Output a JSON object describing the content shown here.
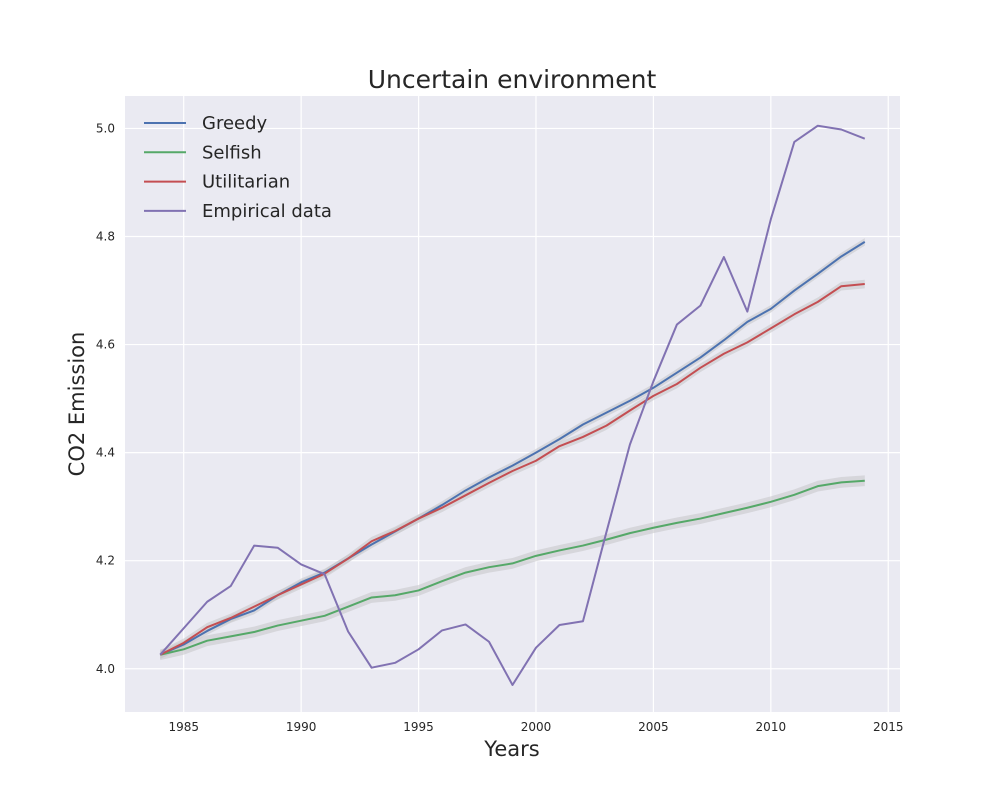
{
  "colors": {
    "background": "#eaeaf2",
    "grid": "#ffffff",
    "band": "#c8c8cc",
    "greedy": "#4c72b0",
    "selfish": "#55a868",
    "utilitarian": "#c44e52",
    "empirical": "#8172b2"
  },
  "chart_data": {
    "type": "line",
    "title": "Uncertain environment",
    "xlabel": "Years",
    "ylabel": "CO2 Emission",
    "xlim": [
      1982.5,
      2015.5
    ],
    "ylim": [
      3.92,
      5.06
    ],
    "xticks": [
      "1985",
      "1990",
      "1995",
      "2000",
      "2005",
      "2010",
      "2015"
    ],
    "yticks": [
      "4.0",
      "4.2",
      "4.4",
      "4.6",
      "4.8",
      "5.0"
    ],
    "grid": true,
    "legend_position": "top-left",
    "x": [
      1984,
      1985,
      1986,
      1987,
      1988,
      1989,
      1990,
      1991,
      1992,
      1993,
      1994,
      1995,
      1996,
      1997,
      1998,
      1999,
      2000,
      2001,
      2002,
      2003,
      2004,
      2005,
      2006,
      2007,
      2008,
      2009,
      2010,
      2011,
      2012,
      2013,
      2014
    ],
    "series": [
      {
        "name": "Greedy",
        "color_key": "greedy",
        "band": 0.007,
        "values": [
          4.026,
          4.045,
          4.07,
          4.092,
          4.108,
          4.136,
          4.16,
          4.178,
          4.204,
          4.23,
          4.254,
          4.278,
          4.303,
          4.33,
          4.354,
          4.376,
          4.4,
          4.425,
          4.452,
          4.474,
          4.496,
          4.52,
          4.548,
          4.576,
          4.608,
          4.642,
          4.666,
          4.7,
          4.731,
          4.763,
          4.79
        ]
      },
      {
        "name": "Selfish",
        "color_key": "selfish",
        "band": 0.01,
        "values": [
          4.026,
          4.036,
          4.052,
          4.06,
          4.068,
          4.08,
          4.089,
          4.098,
          4.115,
          4.132,
          4.136,
          4.145,
          4.162,
          4.178,
          4.188,
          4.195,
          4.209,
          4.219,
          4.228,
          4.239,
          4.251,
          4.261,
          4.27,
          4.278,
          4.288,
          4.298,
          4.309,
          4.322,
          4.338,
          4.345,
          4.348
        ]
      },
      {
        "name": "Utilitarian",
        "color_key": "utilitarian",
        "band": 0.008,
        "values": [
          4.026,
          4.048,
          4.077,
          4.094,
          4.115,
          4.136,
          4.156,
          4.176,
          4.204,
          4.236,
          4.255,
          4.278,
          4.298,
          4.321,
          4.344,
          4.366,
          4.385,
          4.412,
          4.429,
          4.45,
          4.478,
          4.505,
          4.527,
          4.557,
          4.583,
          4.604,
          4.63,
          4.656,
          4.679,
          4.708,
          4.712
        ]
      },
      {
        "name": "Empirical data",
        "color_key": "empirical",
        "band": 0,
        "values": [
          4.026,
          4.075,
          4.124,
          4.153,
          4.228,
          4.224,
          4.193,
          4.175,
          4.069,
          4.002,
          4.011,
          4.036,
          4.071,
          4.082,
          4.05,
          3.97,
          4.039,
          4.081,
          4.088,
          4.253,
          4.415,
          4.532,
          4.637,
          4.672,
          4.762,
          4.661,
          4.832,
          4.975,
          5.005,
          4.998,
          4.981
        ]
      }
    ]
  }
}
